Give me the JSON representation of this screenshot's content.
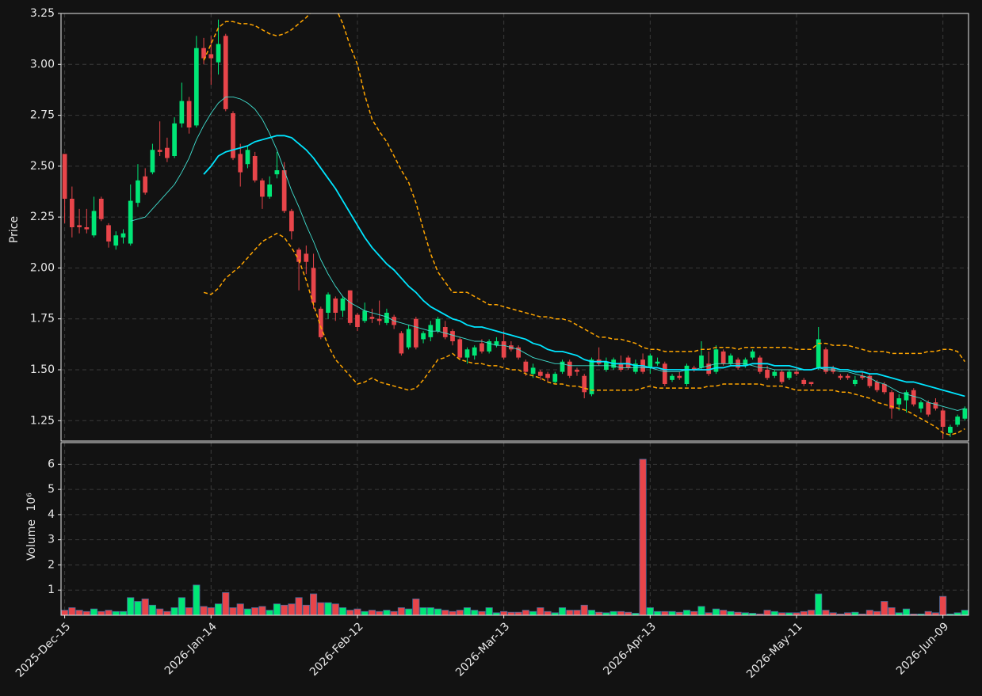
{
  "chart_data": {
    "type": "candlestick",
    "categories": [
      "2025-Dec-15",
      null,
      null,
      null,
      null,
      null,
      null,
      null,
      null,
      null,
      null,
      null,
      null,
      null,
      null,
      null,
      null,
      null,
      null,
      null,
      "2026-Jan-14",
      null,
      null,
      null,
      null,
      null,
      null,
      null,
      null,
      null,
      null,
      null,
      null,
      null,
      null,
      null,
      null,
      null,
      null,
      null,
      "2026-Feb-12",
      null,
      null,
      null,
      null,
      null,
      null,
      null,
      null,
      null,
      null,
      null,
      null,
      null,
      null,
      null,
      null,
      null,
      null,
      null,
      "2026-Mar-13",
      null,
      null,
      null,
      null,
      null,
      null,
      null,
      null,
      null,
      null,
      null,
      null,
      null,
      null,
      null,
      null,
      null,
      null,
      null,
      "2026-Apr-13",
      null,
      null,
      null,
      null,
      null,
      null,
      null,
      null,
      null,
      null,
      null,
      null,
      null,
      null,
      null,
      null,
      null,
      null,
      null,
      "2026-May-11",
      null,
      null,
      null,
      null,
      null,
      null,
      null,
      null,
      null,
      null,
      null,
      null,
      null,
      null,
      null,
      null,
      null,
      null,
      null,
      "2026-Jun-09",
      null,
      null,
      null
    ],
    "open": [
      2.56,
      2.34,
      2.21,
      2.2,
      2.16,
      2.34,
      2.21,
      2.11,
      2.15,
      2.12,
      2.32,
      2.45,
      2.47,
      2.58,
      2.59,
      2.55,
      2.71,
      2.82,
      2.7,
      3.08,
      3.05,
      3.01,
      3.14,
      2.76,
      2.56,
      2.51,
      2.55,
      2.43,
      2.35,
      2.46,
      2.48,
      2.28,
      2.09,
      2.07,
      2.0,
      1.8,
      1.78,
      1.85,
      1.79,
      1.89,
      1.77,
      1.74,
      1.76,
      1.75,
      1.73,
      1.76,
      1.68,
      1.61,
      1.75,
      1.65,
      1.66,
      1.69,
      1.71,
      1.69,
      1.65,
      1.56,
      1.57,
      1.63,
      1.59,
      1.62,
      1.64,
      1.62,
      1.61,
      1.54,
      1.48,
      1.49,
      1.48,
      1.44,
      1.49,
      1.54,
      1.5,
      1.47,
      1.38,
      1.55,
      1.5,
      1.51,
      1.53,
      1.56,
      1.49,
      1.55,
      1.51,
      1.53,
      1.53,
      1.45,
      1.47,
      1.43,
      1.51,
      1.51,
      1.53,
      1.49,
      1.59,
      1.53,
      1.55,
      1.52,
      1.56,
      1.56,
      1.5,
      1.47,
      1.49,
      1.46,
      1.49,
      1.45,
      1.44,
      1.51,
      1.6,
      1.51,
      1.47,
      1.47,
      1.43,
      1.47,
      1.47,
      1.44,
      1.43,
      1.39,
      1.33,
      1.35,
      1.4,
      1.31,
      1.34,
      1.34,
      1.3,
      1.19,
      1.23,
      1.26
    ],
    "high": [
      2.56,
      2.4,
      2.29,
      2.29,
      2.35,
      2.35,
      2.22,
      2.18,
      2.19,
      2.41,
      2.51,
      2.49,
      2.61,
      2.72,
      2.64,
      2.74,
      2.91,
      2.84,
      3.14,
      3.13,
      3.14,
      3.22,
      3.15,
      2.77,
      2.61,
      2.6,
      2.57,
      2.44,
      2.45,
      2.57,
      2.52,
      2.29,
      2.1,
      2.11,
      2.07,
      1.81,
      1.88,
      1.86,
      1.86,
      1.89,
      1.78,
      1.83,
      1.8,
      1.84,
      1.8,
      1.77,
      1.69,
      1.72,
      1.76,
      1.69,
      1.74,
      1.76,
      1.74,
      1.7,
      1.66,
      1.61,
      1.62,
      1.65,
      1.65,
      1.66,
      1.69,
      1.64,
      1.62,
      1.55,
      1.53,
      1.5,
      1.49,
      1.49,
      1.55,
      1.55,
      1.51,
      1.48,
      1.56,
      1.61,
      1.56,
      1.56,
      1.57,
      1.57,
      1.55,
      1.58,
      1.58,
      1.56,
      1.54,
      1.48,
      1.49,
      1.53,
      1.52,
      1.64,
      1.59,
      1.62,
      1.6,
      1.58,
      1.56,
      1.56,
      1.6,
      1.57,
      1.52,
      1.5,
      1.5,
      1.5,
      1.51,
      1.46,
      1.44,
      1.71,
      1.61,
      1.52,
      1.48,
      1.48,
      1.47,
      1.49,
      1.48,
      1.45,
      1.44,
      1.4,
      1.38,
      1.4,
      1.41,
      1.35,
      1.35,
      1.36,
      1.31,
      1.23,
      1.28,
      1.32
    ],
    "low": [
      2.22,
      2.15,
      2.17,
      2.17,
      2.15,
      2.23,
      2.1,
      2.09,
      2.12,
      2.11,
      2.3,
      2.36,
      2.46,
      2.55,
      2.52,
      2.54,
      2.69,
      2.66,
      2.69,
      3.0,
      2.9,
      2.95,
      2.77,
      2.53,
      2.4,
      2.49,
      2.42,
      2.29,
      2.34,
      2.44,
      2.27,
      2.14,
      1.89,
      1.97,
      1.8,
      1.65,
      1.75,
      1.74,
      1.76,
      1.72,
      1.69,
      1.73,
      1.73,
      1.72,
      1.72,
      1.7,
      1.57,
      1.6,
      1.6,
      1.63,
      1.64,
      1.68,
      1.65,
      1.62,
      1.55,
      1.53,
      1.55,
      1.58,
      1.58,
      1.61,
      1.55,
      1.59,
      1.55,
      1.47,
      1.46,
      1.45,
      1.44,
      1.43,
      1.48,
      1.46,
      1.47,
      1.36,
      1.37,
      1.52,
      1.49,
      1.5,
      1.49,
      1.5,
      1.48,
      1.48,
      1.48,
      1.52,
      1.42,
      1.44,
      1.45,
      1.42,
      1.49,
      1.5,
      1.47,
      1.48,
      1.52,
      1.52,
      1.5,
      1.51,
      1.55,
      1.48,
      1.45,
      1.46,
      1.43,
      1.45,
      1.47,
      1.42,
      1.42,
      1.5,
      1.48,
      1.48,
      1.45,
      1.45,
      1.42,
      1.45,
      1.41,
      1.39,
      1.38,
      1.26,
      1.3,
      1.29,
      1.32,
      1.29,
      1.27,
      1.3,
      1.16,
      1.17,
      1.22,
      1.25
    ],
    "close": [
      2.34,
      2.2,
      2.2,
      2.19,
      2.28,
      2.24,
      2.13,
      2.16,
      2.17,
      2.33,
      2.43,
      2.37,
      2.58,
      2.57,
      2.54,
      2.71,
      2.82,
      2.69,
      3.08,
      3.03,
      3.03,
      3.1,
      2.78,
      2.54,
      2.47,
      2.58,
      2.43,
      2.35,
      2.41,
      2.48,
      2.28,
      2.18,
      2.03,
      2.03,
      1.83,
      1.66,
      1.87,
      1.78,
      1.85,
      1.73,
      1.71,
      1.79,
      1.75,
      1.74,
      1.78,
      1.72,
      1.58,
      1.7,
      1.61,
      1.68,
      1.72,
      1.75,
      1.66,
      1.64,
      1.56,
      1.6,
      1.61,
      1.59,
      1.64,
      1.64,
      1.56,
      1.6,
      1.56,
      1.49,
      1.51,
      1.47,
      1.46,
      1.48,
      1.54,
      1.47,
      1.49,
      1.39,
      1.55,
      1.53,
      1.54,
      1.55,
      1.5,
      1.51,
      1.53,
      1.49,
      1.57,
      1.54,
      1.43,
      1.47,
      1.46,
      1.52,
      1.5,
      1.57,
      1.48,
      1.6,
      1.53,
      1.57,
      1.51,
      1.55,
      1.59,
      1.49,
      1.46,
      1.49,
      1.44,
      1.49,
      1.48,
      1.43,
      1.43,
      1.65,
      1.49,
      1.49,
      1.46,
      1.46,
      1.45,
      1.46,
      1.42,
      1.4,
      1.39,
      1.31,
      1.36,
      1.39,
      1.33,
      1.34,
      1.28,
      1.31,
      1.22,
      1.22,
      1.27,
      1.31
    ],
    "volume": [
      0.2,
      0.3,
      0.2,
      0.15,
      0.25,
      0.15,
      0.2,
      0.15,
      0.15,
      0.7,
      0.55,
      0.65,
      0.4,
      0.25,
      0.15,
      0.3,
      0.7,
      0.3,
      1.2,
      0.35,
      0.3,
      0.45,
      0.9,
      0.3,
      0.45,
      0.25,
      0.3,
      0.35,
      0.2,
      0.45,
      0.4,
      0.45,
      0.7,
      0.4,
      0.85,
      0.5,
      0.5,
      0.45,
      0.3,
      0.2,
      0.25,
      0.15,
      0.2,
      0.15,
      0.2,
      0.15,
      0.3,
      0.25,
      0.65,
      0.3,
      0.3,
      0.25,
      0.2,
      0.15,
      0.2,
      0.3,
      0.2,
      0.15,
      0.3,
      0.1,
      0.15,
      0.12,
      0.12,
      0.2,
      0.15,
      0.3,
      0.15,
      0.1,
      0.3,
      0.2,
      0.2,
      0.4,
      0.2,
      0.12,
      0.1,
      0.15,
      0.15,
      0.12,
      0.08,
      6.2,
      0.3,
      0.15,
      0.15,
      0.15,
      0.12,
      0.2,
      0.15,
      0.35,
      0.1,
      0.25,
      0.2,
      0.15,
      0.12,
      0.1,
      0.08,
      0.05,
      0.2,
      0.15,
      0.1,
      0.1,
      0.1,
      0.15,
      0.2,
      0.85,
      0.2,
      0.1,
      0.05,
      0.1,
      0.12,
      0.05,
      0.2,
      0.15,
      0.55,
      0.3,
      0.1,
      0.25,
      0.05,
      0.05,
      0.15,
      0.1,
      0.75,
      0.05,
      0.1,
      0.2
    ],
    "up_color": "#00e676",
    "down_color": "#e8454a",
    "ylabel": "Price",
    "ylim": [
      1.15,
      3.25
    ],
    "yticks": [
      1.25,
      {
        "value": 1.5,
        "label": "1.50"
      },
      1.75,
      {
        "value": 2,
        "label": "2.00"
      },
      2.25,
      {
        "value": 2.5,
        "label": "2.50"
      },
      2.75,
      {
        "value": 3,
        "label": "3.00"
      },
      3.25
    ],
    "volume_ylabel": "Volume",
    "volume_offset_label": "10⁶",
    "volume_ylim": [
      0,
      6.86
    ],
    "volume_yticks": [
      1,
      2,
      3,
      4,
      5,
      6
    ],
    "grid": true,
    "lines": [
      {
        "color": "#40e0d0",
        "width": 0.9,
        "dashed": false,
        "values": [
          null,
          null,
          null,
          null,
          null,
          null,
          null,
          null,
          null,
          2.23,
          2.24,
          2.25,
          2.29,
          2.33,
          2.37,
          2.41,
          2.47,
          2.54,
          2.63,
          2.7,
          2.76,
          2.81,
          2.84,
          2.84,
          2.83,
          2.81,
          2.78,
          2.73,
          2.66,
          2.58,
          2.48,
          2.38,
          2.3,
          2.21,
          2.13,
          2.04,
          1.97,
          1.91,
          1.86,
          1.83,
          1.81,
          1.79,
          1.78,
          1.77,
          1.76,
          1.74,
          1.73,
          1.72,
          1.71,
          1.7,
          1.69,
          1.69,
          1.68,
          1.67,
          1.66,
          1.65,
          1.64,
          1.64,
          1.63,
          1.62,
          1.62,
          1.61,
          1.6,
          1.58,
          1.56,
          1.55,
          1.54,
          1.53,
          1.53,
          1.52,
          1.52,
          1.52,
          1.52,
          1.52,
          1.52,
          1.52,
          1.51,
          1.51,
          1.51,
          1.51,
          1.51,
          1.5,
          1.49,
          1.49,
          1.49,
          1.5,
          1.5,
          1.51,
          1.52,
          1.53,
          1.53,
          1.53,
          1.53,
          1.53,
          1.52,
          1.51,
          1.51,
          1.5,
          1.5,
          1.5,
          1.5,
          1.5,
          1.5,
          1.51,
          1.5,
          1.5,
          1.49,
          1.49,
          1.48,
          1.47,
          1.46,
          1.44,
          1.43,
          1.41,
          1.39,
          1.38,
          1.37,
          1.36,
          1.34,
          1.33,
          1.32,
          1.31,
          1.3,
          1.31
        ]
      },
      {
        "color": "#00e5ff",
        "width": 1.8,
        "dashed": false,
        "values": [
          null,
          null,
          null,
          null,
          null,
          null,
          null,
          null,
          null,
          null,
          null,
          null,
          null,
          null,
          null,
          null,
          null,
          null,
          null,
          2.46,
          2.5,
          2.55,
          2.57,
          2.58,
          2.59,
          2.6,
          2.62,
          2.63,
          2.64,
          2.65,
          2.65,
          2.64,
          2.61,
          2.58,
          2.54,
          2.49,
          2.44,
          2.39,
          2.33,
          2.27,
          2.21,
          2.15,
          2.1,
          2.06,
          2.02,
          1.99,
          1.95,
          1.91,
          1.88,
          1.84,
          1.81,
          1.79,
          1.77,
          1.75,
          1.74,
          1.72,
          1.71,
          1.71,
          1.7,
          1.69,
          1.68,
          1.67,
          1.66,
          1.65,
          1.63,
          1.62,
          1.6,
          1.59,
          1.59,
          1.58,
          1.57,
          1.55,
          1.54,
          1.54,
          1.54,
          1.53,
          1.53,
          1.53,
          1.52,
          1.52,
          1.51,
          1.51,
          1.5,
          1.5,
          1.5,
          1.5,
          1.5,
          1.5,
          1.5,
          1.51,
          1.51,
          1.52,
          1.52,
          1.52,
          1.53,
          1.53,
          1.53,
          1.52,
          1.52,
          1.52,
          1.51,
          1.5,
          1.5,
          1.51,
          1.51,
          1.51,
          1.5,
          1.5,
          1.49,
          1.49,
          1.48,
          1.48,
          1.47,
          1.46,
          1.45,
          1.44,
          1.44,
          1.43,
          1.42,
          1.41,
          1.4,
          1.39,
          1.38,
          1.37
        ]
      },
      {
        "color": "#ffa500",
        "width": 1.5,
        "dashed": true,
        "values": [
          null,
          null,
          null,
          null,
          null,
          null,
          null,
          null,
          null,
          null,
          null,
          null,
          null,
          null,
          null,
          null,
          null,
          null,
          null,
          3.02,
          3.1,
          3.18,
          3.21,
          3.21,
          3.2,
          3.2,
          3.19,
          3.17,
          3.15,
          3.14,
          3.15,
          3.17,
          3.2,
          3.23,
          3.27,
          3.3,
          3.3,
          3.28,
          3.2,
          3.09,
          3.0,
          2.85,
          2.73,
          2.67,
          2.62,
          2.55,
          2.48,
          2.42,
          2.32,
          2.19,
          2.07,
          1.98,
          1.93,
          1.88,
          1.88,
          1.88,
          1.86,
          1.84,
          1.82,
          1.82,
          1.81,
          1.8,
          1.79,
          1.78,
          1.77,
          1.76,
          1.76,
          1.75,
          1.75,
          1.74,
          1.72,
          1.7,
          1.68,
          1.66,
          1.66,
          1.65,
          1.65,
          1.64,
          1.63,
          1.61,
          1.6,
          1.6,
          1.59,
          1.59,
          1.59,
          1.59,
          1.59,
          1.6,
          1.6,
          1.61,
          1.61,
          1.61,
          1.6,
          1.61,
          1.61,
          1.61,
          1.61,
          1.61,
          1.61,
          1.61,
          1.6,
          1.6,
          1.6,
          1.63,
          1.63,
          1.62,
          1.62,
          1.62,
          1.61,
          1.6,
          1.59,
          1.59,
          1.59,
          1.58,
          1.58,
          1.58,
          1.58,
          1.58,
          1.59,
          1.59,
          1.6,
          1.6,
          1.59,
          1.54
        ]
      },
      {
        "color": "#ffa500",
        "width": 1.5,
        "dashed": true,
        "values": [
          null,
          null,
          null,
          null,
          null,
          null,
          null,
          null,
          null,
          null,
          null,
          null,
          null,
          null,
          null,
          null,
          null,
          null,
          null,
          1.88,
          1.87,
          1.9,
          1.95,
          1.98,
          2.01,
          2.05,
          2.09,
          2.13,
          2.15,
          2.17,
          2.15,
          2.1,
          2.04,
          1.94,
          1.82,
          1.71,
          1.62,
          1.55,
          1.51,
          1.47,
          1.43,
          1.44,
          1.46,
          1.44,
          1.43,
          1.42,
          1.41,
          1.4,
          1.41,
          1.45,
          1.5,
          1.55,
          1.56,
          1.58,
          1.55,
          1.54,
          1.53,
          1.53,
          1.52,
          1.52,
          1.51,
          1.5,
          1.5,
          1.48,
          1.47,
          1.46,
          1.44,
          1.43,
          1.43,
          1.42,
          1.42,
          1.41,
          1.4,
          1.4,
          1.4,
          1.4,
          1.4,
          1.4,
          1.4,
          1.41,
          1.42,
          1.41,
          1.41,
          1.41,
          1.41,
          1.41,
          1.41,
          1.41,
          1.42,
          1.42,
          1.43,
          1.43,
          1.43,
          1.43,
          1.43,
          1.43,
          1.42,
          1.42,
          1.42,
          1.41,
          1.4,
          1.4,
          1.4,
          1.4,
          1.4,
          1.4,
          1.39,
          1.39,
          1.38,
          1.37,
          1.36,
          1.34,
          1.33,
          1.32,
          1.31,
          1.3,
          1.28,
          1.26,
          1.24,
          1.22,
          1.19,
          1.18,
          1.19,
          1.21
        ]
      }
    ]
  }
}
